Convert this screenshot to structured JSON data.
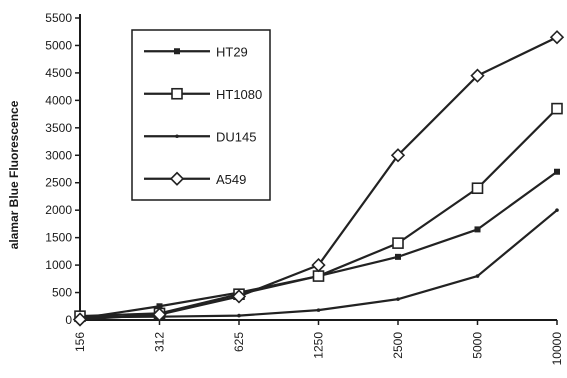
{
  "chart_data": {
    "type": "line",
    "title": "",
    "xlabel": "",
    "ylabel": "alamar Blue Fluorescence",
    "x": [
      "156",
      "312",
      "625",
      "1250",
      "2500",
      "5000",
      "10000"
    ],
    "ylim": [
      0,
      5500
    ],
    "yticks": [
      0,
      500,
      1000,
      1500,
      2000,
      2500,
      3000,
      3500,
      4000,
      4500,
      5000,
      5500
    ],
    "grid": false,
    "legend_position": "top-left",
    "series": [
      {
        "name": "HT29",
        "marker": "filled-square",
        "values": [
          30,
          250,
          500,
          800,
          1150,
          1650,
          2700
        ]
      },
      {
        "name": "HT1080",
        "marker": "open-square",
        "values": [
          70,
          120,
          470,
          800,
          1400,
          2400,
          3850
        ]
      },
      {
        "name": "DU145",
        "marker": "small-dot",
        "values": [
          50,
          60,
          80,
          180,
          380,
          800,
          2000
        ]
      },
      {
        "name": "A549",
        "marker": "open-diamond",
        "values": [
          10,
          100,
          430,
          1000,
          3000,
          4450,
          5150
        ]
      }
    ]
  }
}
